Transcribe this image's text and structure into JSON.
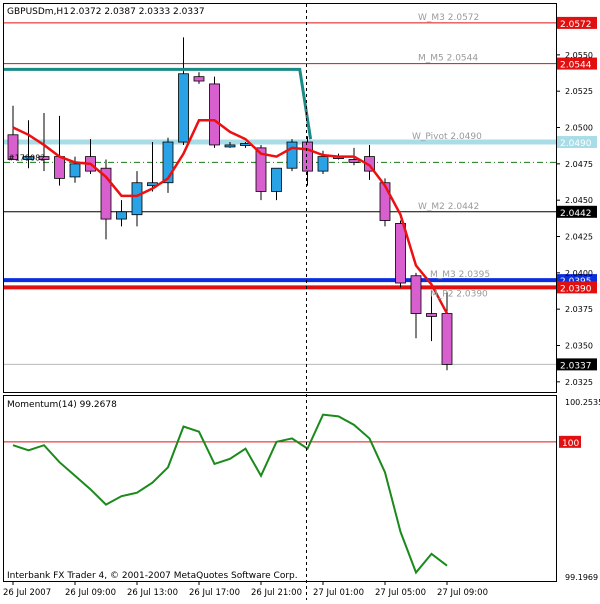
{
  "header": {
    "symbol": "GBPUSDm,H1",
    "ohlc": "2.0372 2.0387 2.0333 2.0337"
  },
  "colors": {
    "bull": "#2aa3e6",
    "bear": "#d85fce",
    "red_level": "#e01010",
    "blue_level": "#0a2ee0",
    "ma_line": "#ee1010",
    "teal_line": "#1a8a86",
    "pivot_line": "#a8dce6",
    "dashdot": "#1a7a1a",
    "momentum": "#1a8a1a",
    "current_price_bg": "#000000"
  },
  "footer": {
    "copyright": "Interbank FX Trader 4, © 2001-2007 MetaQuotes Software Corp."
  },
  "chart_data": [
    {
      "type": "candlestick",
      "title": "GBPUSDm,H1",
      "y_ticks": [
        "2.0550",
        "2.0525",
        "2.0500",
        "2.0475",
        "2.0450",
        "2.0425",
        "2.0400",
        "2.0375",
        "2.0350",
        "2.0325"
      ],
      "ylim": [
        2.0318,
        2.0585
      ],
      "candles": [
        {
          "o": 2.0495,
          "h": 2.0515,
          "l": 2.0478,
          "c": 2.0478
        },
        {
          "o": 2.0478,
          "h": 2.0505,
          "l": 2.0472,
          "c": 2.048
        },
        {
          "o": 2.048,
          "h": 2.051,
          "l": 2.047,
          "c": 2.0478
        },
        {
          "o": 2.048,
          "h": 2.0508,
          "l": 2.046,
          "c": 2.0465
        },
        {
          "o": 2.0466,
          "h": 2.048,
          "l": 2.0462,
          "c": 2.0475
        },
        {
          "o": 2.048,
          "h": 2.0492,
          "l": 2.0468,
          "c": 2.047
        },
        {
          "o": 2.0472,
          "h": 2.0478,
          "l": 2.0423,
          "c": 2.0437
        },
        {
          "o": 2.0437,
          "h": 2.045,
          "l": 2.0432,
          "c": 2.0442
        },
        {
          "o": 2.044,
          "h": 2.047,
          "l": 2.0432,
          "c": 2.0462
        },
        {
          "o": 2.046,
          "h": 2.049,
          "l": 2.0456,
          "c": 2.0462
        },
        {
          "o": 2.0462,
          "h": 2.0493,
          "l": 2.0455,
          "c": 2.049
        },
        {
          "o": 2.049,
          "h": 2.0562,
          "l": 2.0488,
          "c": 2.0537
        },
        {
          "o": 2.0535,
          "h": 2.0538,
          "l": 2.053,
          "c": 2.0532
        },
        {
          "o": 2.053,
          "h": 2.0535,
          "l": 2.0486,
          "c": 2.0488
        },
        {
          "o": 2.0488,
          "h": 2.049,
          "l": 2.0486,
          "c": 2.0488
        },
        {
          "o": 2.0488,
          "h": 2.049,
          "l": 2.0486,
          "c": 2.0489
        },
        {
          "o": 2.0486,
          "h": 2.0488,
          "l": 2.045,
          "c": 2.0456
        },
        {
          "o": 2.0456,
          "h": 2.0472,
          "l": 2.045,
          "c": 2.0472
        },
        {
          "o": 2.0472,
          "h": 2.0492,
          "l": 2.047,
          "c": 2.049
        },
        {
          "o": 2.049,
          "h": 2.0494,
          "l": 2.046,
          "c": 2.047
        },
        {
          "o": 2.047,
          "h": 2.0484,
          "l": 2.0468,
          "c": 2.048
        },
        {
          "o": 2.048,
          "h": 2.0482,
          "l": 2.0478,
          "c": 2.0479
        },
        {
          "o": 2.0478,
          "h": 2.0486,
          "l": 2.0474,
          "c": 2.0476
        },
        {
          "o": 2.048,
          "h": 2.0488,
          "l": 2.0464,
          "c": 2.047
        },
        {
          "o": 2.0462,
          "h": 2.0465,
          "l": 2.0432,
          "c": 2.0436
        },
        {
          "o": 2.0434,
          "h": 2.0436,
          "l": 2.039,
          "c": 2.0393
        },
        {
          "o": 2.0398,
          "h": 2.04,
          "l": 2.0355,
          "c": 2.0372
        },
        {
          "o": 2.0372,
          "h": 2.0388,
          "l": 2.0353,
          "c": 2.037
        },
        {
          "o": 2.0372,
          "h": 2.0387,
          "l": 2.0333,
          "c": 2.0337
        }
      ],
      "moving_average": [
        2.05,
        2.0495,
        2.0488,
        2.048,
        2.0476,
        2.0475,
        2.0466,
        2.0453,
        2.0453,
        2.0458,
        2.0465,
        2.0482,
        2.0505,
        2.0505,
        2.0497,
        2.0492,
        2.0482,
        2.048,
        2.0486,
        2.0485,
        2.0481,
        2.048,
        2.048,
        2.0474,
        2.046,
        2.044,
        2.0405,
        2.0392,
        2.0372
      ],
      "teal_line": [
        {
          "i": -1,
          "v": 2.054
        },
        {
          "i": 18.5,
          "v": 2.054
        },
        {
          "i": 19.2,
          "v": 2.0492
        }
      ],
      "levels": [
        {
          "label": "W_M3 2.0572",
          "value": 2.0572,
          "badge": "2.0572",
          "color": "#e01010",
          "badge_bg": "#e01010"
        },
        {
          "label": "M_M5 2.0544",
          "value": 2.0544,
          "badge": "2.0544",
          "color": "#e01010",
          "badge_bg": "#e01010"
        },
        {
          "label": "W_Pivot 2.0490",
          "value": 2.049,
          "badge": "2.0490",
          "color": "#a8dce6",
          "badge_bg": "#a8dce6"
        },
        {
          "label": "W_M2 2.0442",
          "value": 2.0442,
          "badge": "2.0442",
          "color": "#000000",
          "badge_bg": "#000000"
        },
        {
          "label": "M_M3 2.0395",
          "value": 2.0395,
          "badge": "2.0395",
          "color": "#0a2ee0",
          "badge_bg": "#0a2ee0"
        },
        {
          "label": "M_P2 2.0390",
          "value": 2.039,
          "badge": "2.0390",
          "color": "#e01010",
          "badge_bg": "#e01010"
        }
      ],
      "dashdot_level": {
        "label": "#179082",
        "value": 2.0476
      },
      "current_price": {
        "value": 2.0337,
        "badge": "2.0337"
      }
    },
    {
      "type": "line",
      "title": "Momentum(14) 99.2678",
      "y_ticks": [
        "100.2535",
        "100",
        "99.1969"
      ],
      "ylim": [
        99.18,
        100.27
      ],
      "reference_line": {
        "value": 100,
        "label": "100"
      },
      "values": [
        99.98,
        99.95,
        99.98,
        99.88,
        99.8,
        99.72,
        99.63,
        99.68,
        99.7,
        99.76,
        99.85,
        100.09,
        100.06,
        99.87,
        99.9,
        99.96,
        99.8,
        100.0,
        100.02,
        99.96,
        100.16,
        100.15,
        100.1,
        100.02,
        99.82,
        99.47,
        99.23,
        99.34,
        99.27
      ]
    }
  ],
  "x_axis": {
    "labels": [
      "26 Jul 2007",
      "26 Jul 09:00",
      "26 Jul 13:00",
      "26 Jul 17:00",
      "26 Jul 21:00",
      "27 Jul 01:00",
      "27 Jul 05:00",
      "27 Jul 09:00"
    ],
    "label_positions": [
      0,
      4,
      8,
      12,
      16,
      20,
      24,
      28
    ]
  }
}
